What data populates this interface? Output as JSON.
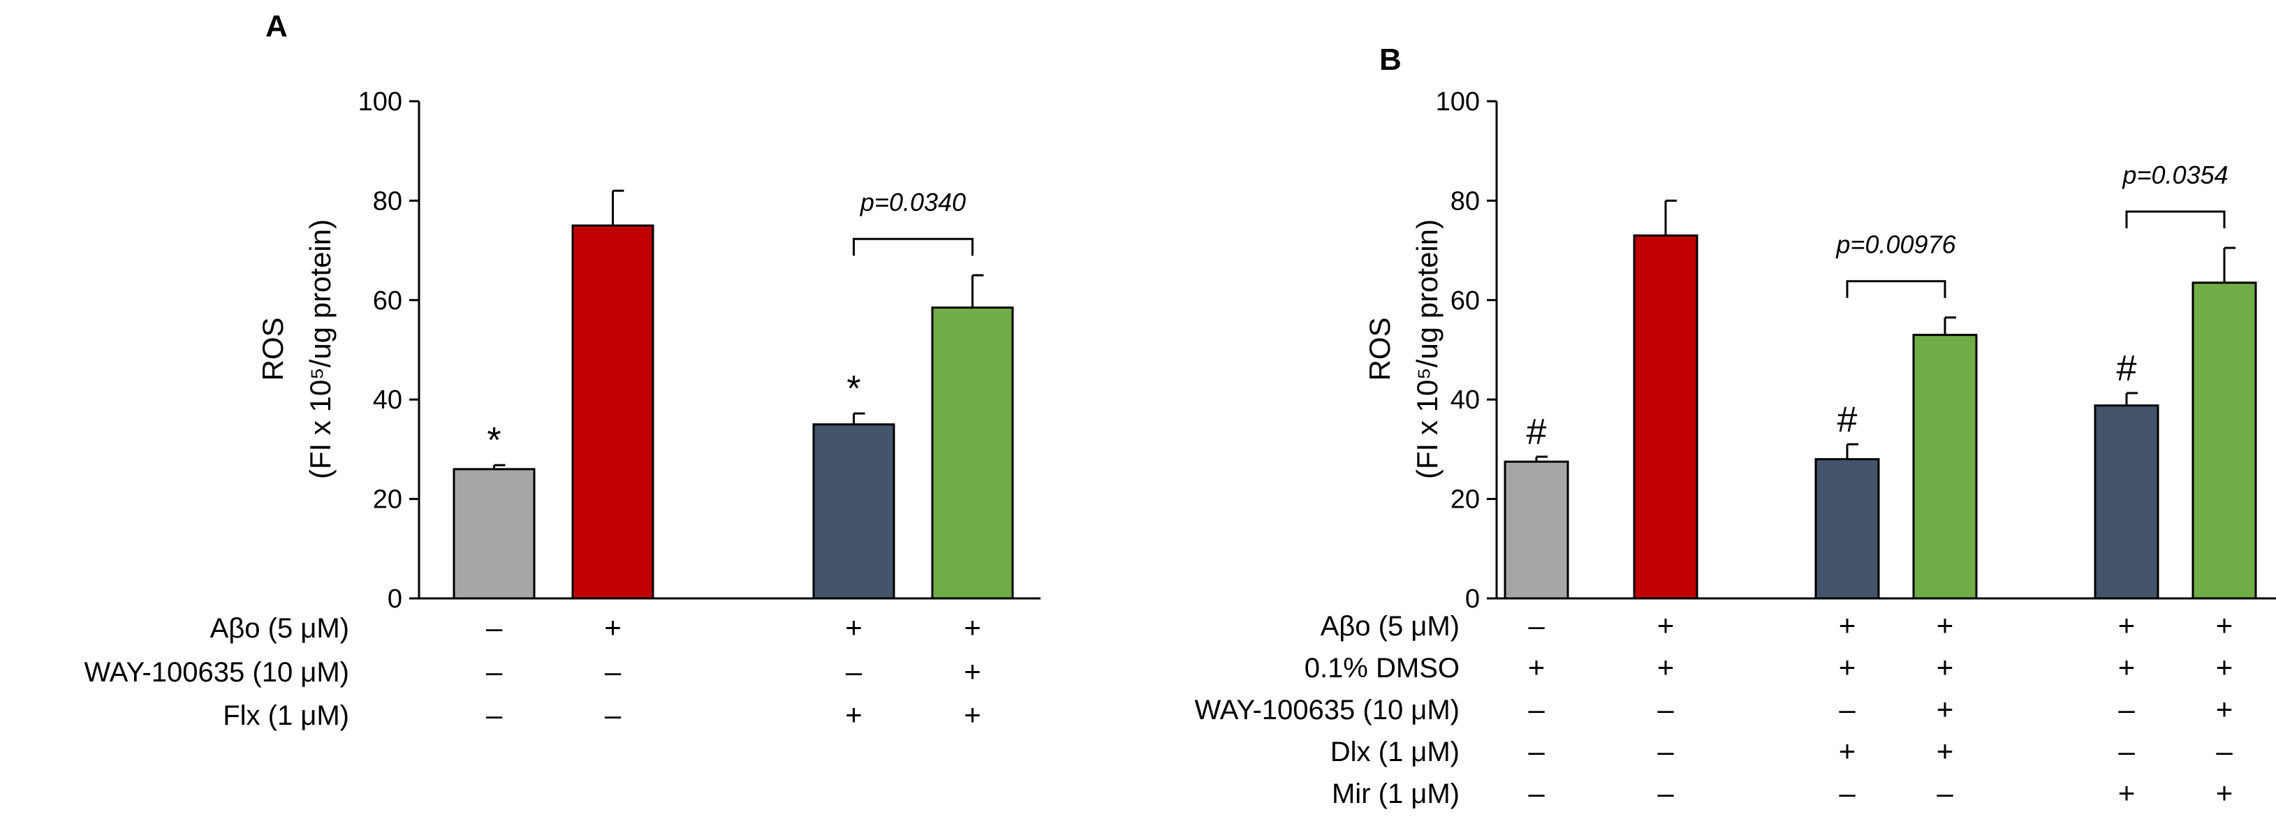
{
  "chart_data": [
    {
      "panel": "A",
      "type": "bar",
      "ylabel": [
        "ROS",
        "(FI x 10⁵/ug protein)"
      ],
      "ylim": [
        0,
        100
      ],
      "yticks": [
        0,
        20,
        40,
        60,
        80,
        100
      ],
      "bars": [
        {
          "value": 26,
          "error": 0.8,
          "color": "#a6a6a6",
          "marker": "*",
          "group": 0
        },
        {
          "value": 75,
          "error": 7,
          "color": "#c00000",
          "marker": "",
          "group": 0
        },
        {
          "value": 35,
          "error": 2.2,
          "color": "#44546a",
          "marker": "*",
          "group": 1
        },
        {
          "value": 58.5,
          "error": 6.5,
          "color": "#70ad47",
          "marker": "",
          "group": 1
        }
      ],
      "comparisons": [
        {
          "from": 2,
          "to": 3,
          "label": "p=0.0340"
        }
      ],
      "conditions": [
        {
          "label": "Aβo (5 μM)",
          "signs": [
            "–",
            "+",
            "+",
            "+"
          ]
        },
        {
          "label": "WAY-100635 (10 μM)",
          "signs": [
            "–",
            "–",
            "–",
            "+"
          ]
        },
        {
          "label": "Flx (1 μM)",
          "signs": [
            "–",
            "–",
            "+",
            "+"
          ]
        }
      ]
    },
    {
      "panel": "B",
      "type": "bar",
      "ylabel": [
        "ROS",
        "(FI x 10⁵/ug protein)"
      ],
      "ylim": [
        0,
        100
      ],
      "yticks": [
        0,
        20,
        40,
        60,
        80,
        100
      ],
      "bars": [
        {
          "value": 27.5,
          "error": 1,
          "color": "#a6a6a6",
          "marker": "#",
          "group": 0
        },
        {
          "value": 73,
          "error": 7,
          "color": "#c00000",
          "marker": "",
          "group": 0
        },
        {
          "value": 28,
          "error": 3,
          "color": "#44546a",
          "marker": "#",
          "group": 1
        },
        {
          "value": 53,
          "error": 3.5,
          "color": "#70ad47",
          "marker": "",
          "group": 1
        },
        {
          "value": 38.8,
          "error": 2.5,
          "color": "#44546a",
          "marker": "#",
          "group": 2
        },
        {
          "value": 63.5,
          "error": 7,
          "color": "#70ad47",
          "marker": "",
          "group": 2
        }
      ],
      "comparisons": [
        {
          "from": 2,
          "to": 3,
          "label": "p=0.00976"
        },
        {
          "from": 4,
          "to": 5,
          "label": "p=0.0354"
        }
      ],
      "conditions": [
        {
          "label": "Aβo (5 μM)",
          "signs": [
            "–",
            "+",
            "+",
            "+",
            "+",
            "+"
          ]
        },
        {
          "label": "0.1% DMSO",
          "signs": [
            "+",
            "+",
            "+",
            "+",
            "+",
            "+"
          ]
        },
        {
          "label": "WAY-100635 (10 μM)",
          "signs": [
            "–",
            "–",
            "–",
            "+",
            "–",
            "+"
          ]
        },
        {
          "label": "Dlx (1 μM)",
          "signs": [
            "–",
            "–",
            "+",
            "+",
            "–",
            "–"
          ]
        },
        {
          "label": "Mir (1 μM)",
          "signs": [
            "–",
            "–",
            "–",
            "–",
            "+",
            "+"
          ]
        }
      ]
    }
  ]
}
